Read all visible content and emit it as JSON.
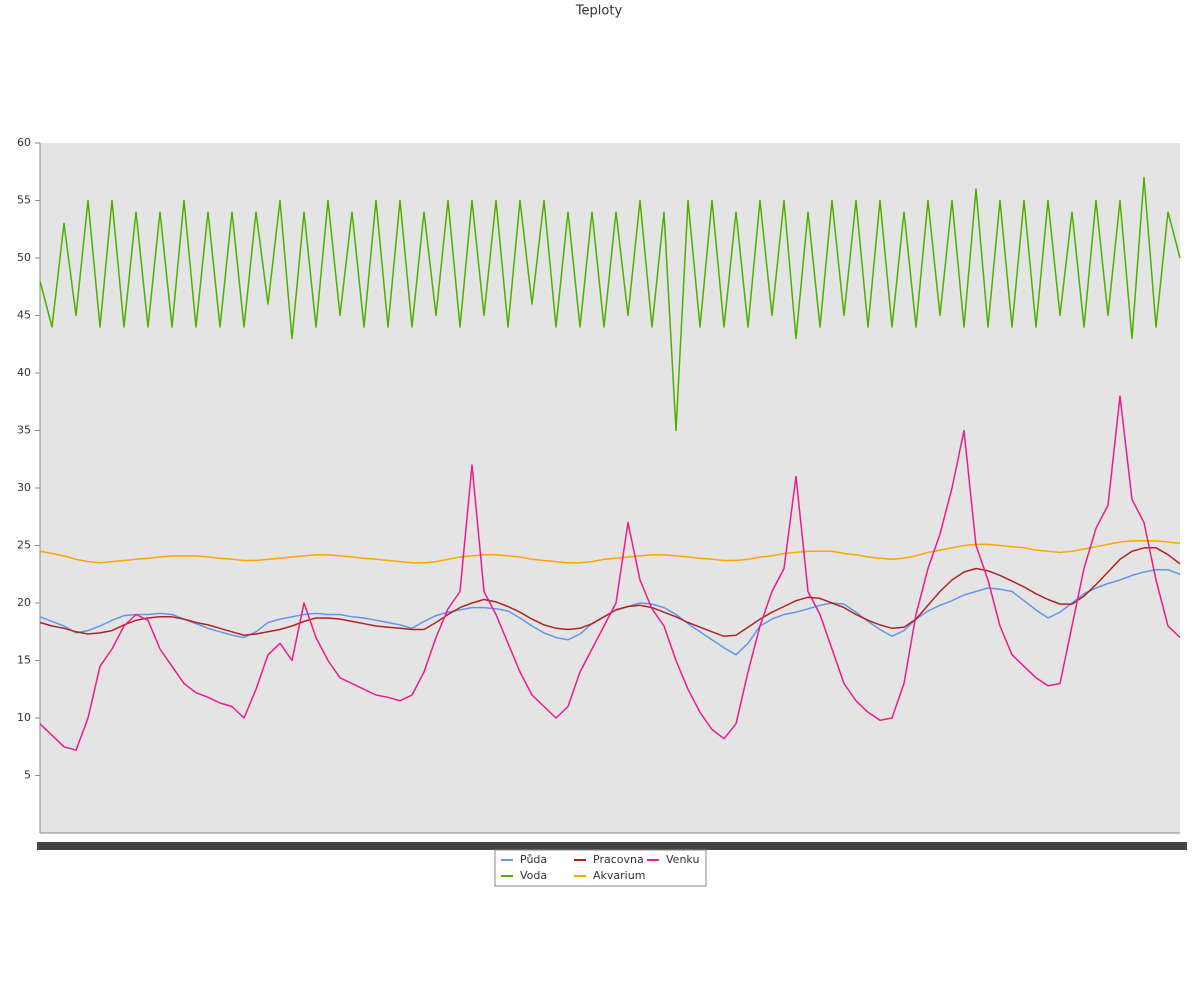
{
  "chart_data": {
    "type": "line",
    "title": "Teploty",
    "categories": [
      null,
      null,
      null,
      null,
      null,
      null,
      null,
      null,
      null,
      null,
      null,
      null,
      null,
      null,
      null,
      null,
      null,
      null,
      null,
      null,
      null,
      null,
      null,
      null,
      null,
      null,
      null,
      null,
      null,
      null,
      null,
      null,
      null,
      null,
      null,
      null,
      null,
      null,
      null,
      null,
      null,
      null,
      null,
      null,
      null,
      null,
      null,
      null,
      null,
      null,
      null,
      null,
      null,
      null,
      null,
      null,
      null,
      null,
      null,
      null,
      null,
      null,
      null,
      null,
      null,
      null,
      null,
      null,
      null,
      null,
      null,
      null,
      null,
      null,
      null,
      null,
      null,
      null,
      null,
      null,
      null,
      null,
      null,
      null,
      null,
      null,
      null,
      null,
      null,
      null,
      null,
      null,
      null,
      null,
      null,
      null
    ],
    "series": [
      {
        "name": "Půda",
        "color": "#6495ed",
        "values": [
          18.8,
          18.4,
          18,
          17.4,
          17.6,
          18,
          18.5,
          18.9,
          19,
          19,
          19.1,
          19,
          18.6,
          18.2,
          17.8,
          17.5,
          17.2,
          17,
          17.5,
          18.3,
          18.6,
          18.8,
          19,
          19.1,
          19,
          19,
          18.8,
          18.7,
          18.5,
          18.3,
          18.1,
          17.8,
          18.4,
          18.9,
          19.2,
          19.4,
          19.6,
          19.6,
          19.5,
          19.3,
          18.7,
          18,
          17.4,
          17,
          16.8,
          17.3,
          18.2,
          18.8,
          19.4,
          19.7,
          20,
          19.9,
          19.6,
          19,
          18.2,
          17.5,
          16.8,
          16.1,
          15.5,
          16.5,
          18,
          18.6,
          19,
          19.2,
          19.5,
          19.8,
          20,
          19.9,
          19.2,
          18.4,
          17.7,
          17.1,
          17.6,
          18.6,
          19.3,
          19.8,
          20.2,
          20.7,
          21,
          21.3,
          21.2,
          21,
          20.2,
          19.4,
          18.7,
          19.2,
          20,
          20.8,
          21.3,
          21.7,
          22,
          22.4,
          22.7,
          22.9,
          22.9,
          22.5
        ]
      },
      {
        "name": "Voda",
        "color": "#4cb000",
        "values": [
          48,
          44,
          53,
          45,
          55,
          44,
          55,
          44,
          54,
          44,
          54,
          44,
          55,
          44,
          54,
          44,
          54,
          44,
          54,
          46,
          55,
          43,
          54,
          44,
          55,
          45,
          54,
          44,
          55,
          44,
          55,
          44,
          54,
          45,
          55,
          44,
          55,
          45,
          55,
          44,
          55,
          46,
          55,
          44,
          54,
          44,
          54,
          44,
          54,
          45,
          55,
          44,
          54,
          35,
          55,
          44,
          55,
          44,
          54,
          44,
          55,
          45,
          55,
          43,
          54,
          44,
          55,
          45,
          55,
          44,
          55,
          44,
          54,
          44,
          55,
          45,
          55,
          44,
          56,
          44,
          55,
          44,
          55,
          44,
          55,
          45,
          54,
          44,
          55,
          45,
          55,
          43,
          57,
          44,
          54,
          50
        ]
      },
      {
        "name": "Pracovna",
        "color": "#b22222",
        "values": [
          18.3,
          18,
          17.8,
          17.5,
          17.3,
          17.4,
          17.6,
          18.1,
          18.5,
          18.7,
          18.8,
          18.8,
          18.6,
          18.3,
          18.1,
          17.8,
          17.5,
          17.2,
          17.3,
          17.5,
          17.7,
          18,
          18.4,
          18.7,
          18.7,
          18.6,
          18.4,
          18.2,
          18,
          17.9,
          17.8,
          17.7,
          17.7,
          18.3,
          19,
          19.6,
          20,
          20.3,
          20.1,
          19.7,
          19.2,
          18.6,
          18.1,
          17.8,
          17.7,
          17.8,
          18.2,
          18.8,
          19.4,
          19.7,
          19.8,
          19.6,
          19.2,
          18.8,
          18.3,
          17.9,
          17.5,
          17.1,
          17.2,
          17.9,
          18.6,
          19.2,
          19.7,
          20.2,
          20.5,
          20.4,
          20,
          19.6,
          19,
          18.5,
          18.1,
          17.8,
          17.9,
          18.6,
          19.8,
          21,
          22,
          22.7,
          23,
          22.8,
          22.4,
          21.9,
          21.4,
          20.8,
          20.3,
          19.9,
          19.9,
          20.6,
          21.6,
          22.7,
          23.8,
          24.5,
          24.8,
          24.8,
          24.2,
          23.4
        ]
      },
      {
        "name": "Akvarium",
        "color": "#ffa500",
        "values": [
          24.5,
          24.3,
          24.1,
          23.8,
          23.6,
          23.5,
          23.6,
          23.7,
          23.8,
          23.9,
          24,
          24.1,
          24.1,
          24.1,
          24,
          23.9,
          23.8,
          23.7,
          23.7,
          23.8,
          23.9,
          24,
          24.1,
          24.2,
          24.2,
          24.1,
          24,
          23.9,
          23.8,
          23.7,
          23.6,
          23.5,
          23.5,
          23.6,
          23.8,
          24,
          24.1,
          24.2,
          24.2,
          24.1,
          24,
          23.8,
          23.7,
          23.6,
          23.5,
          23.5,
          23.6,
          23.8,
          23.9,
          24,
          24.1,
          24.2,
          24.2,
          24.1,
          24,
          23.9,
          23.8,
          23.7,
          23.7,
          23.8,
          24,
          24.1,
          24.3,
          24.4,
          24.5,
          24.5,
          24.5,
          24.3,
          24.2,
          24,
          23.9,
          23.8,
          23.9,
          24.1,
          24.4,
          24.6,
          24.8,
          25,
          25.1,
          25.1,
          25,
          24.9,
          24.8,
          24.6,
          24.5,
          24.4,
          24.5,
          24.7,
          24.9,
          25.1,
          25.3,
          25.4,
          25.4,
          25.4,
          25.3,
          25.2
        ]
      },
      {
        "name": "Venku",
        "color": "#ee1a8f",
        "values": [
          9.5,
          8.5,
          7.5,
          7.2,
          10,
          14.5,
          16,
          18,
          19,
          18.5,
          16,
          14.5,
          13,
          12.2,
          11.8,
          11.3,
          11,
          10,
          12.5,
          15.5,
          16.5,
          15,
          20,
          17,
          15,
          13.5,
          13,
          12.5,
          12,
          11.8,
          11.5,
          12,
          14,
          17,
          19.5,
          21,
          32,
          21,
          19,
          16.5,
          14,
          12,
          11,
          10,
          11,
          14,
          16,
          18,
          20,
          27,
          22,
          19.5,
          18,
          15,
          12.5,
          10.5,
          9,
          8.2,
          9.5,
          14,
          18,
          21,
          23,
          31,
          21,
          19,
          16,
          13,
          11.5,
          10.5,
          9.8,
          10,
          13,
          19,
          23,
          26,
          30,
          35,
          25,
          22,
          18,
          15.5,
          14.5,
          13.5,
          12.8,
          13,
          18,
          23,
          26.5,
          28.5,
          38,
          29,
          27,
          22,
          18,
          17
        ]
      }
    ],
    "ylim": [
      0,
      60
    ],
    "yticks": [
      5,
      10,
      15,
      20,
      25,
      30,
      35,
      40,
      45,
      50,
      55,
      60
    ]
  }
}
